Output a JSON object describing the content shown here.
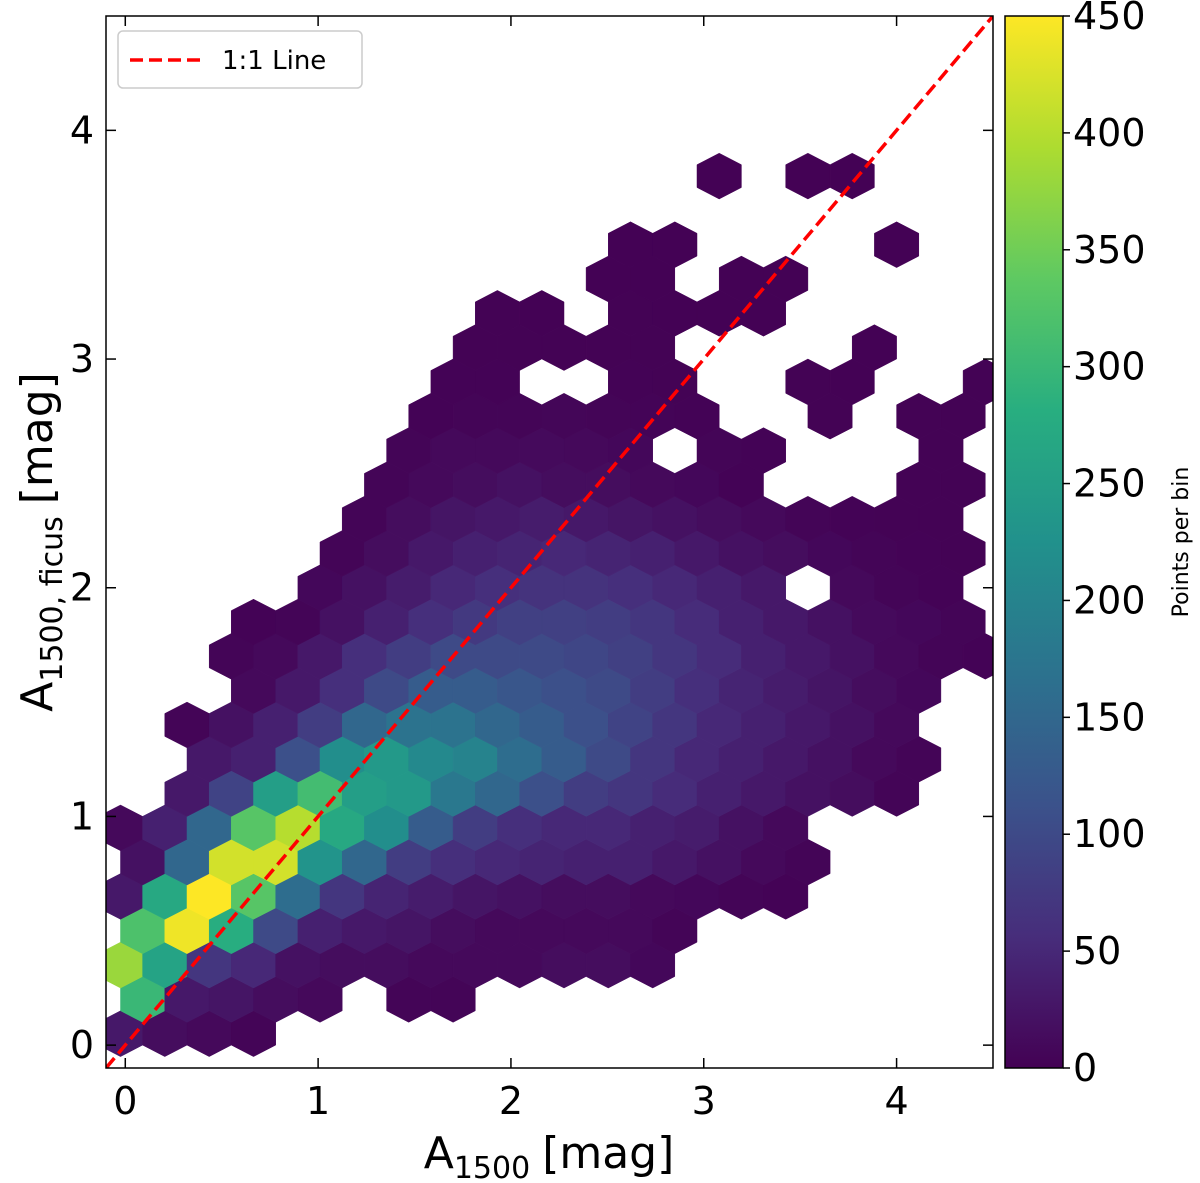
{
  "chart_data": {
    "type": "hexbin",
    "xlabel": {
      "text": "A",
      "sub": "1500",
      "unit": "[mag]"
    },
    "ylabel": {
      "text": "A",
      "sub": "1500, ficus",
      "unit": "[mag]"
    },
    "xlim": [
      -0.1,
      4.5
    ],
    "ylim": [
      -0.1,
      4.5
    ],
    "xticks": [
      0,
      1,
      2,
      3,
      4
    ],
    "yticks": [
      0,
      1,
      2,
      3,
      4
    ],
    "grid": false,
    "legend": "upper left",
    "lines": [
      {
        "name": "1:1 Line",
        "color": "#ff0000",
        "style": "dashed",
        "x": [
          -0.1,
          4.5
        ],
        "y": [
          -0.1,
          4.5
        ]
      }
    ],
    "colorbar": {
      "label": "Points per bin",
      "clim": [
        0,
        450
      ],
      "ticks": [
        0,
        50,
        100,
        150,
        200,
        250,
        300,
        350,
        400,
        450
      ],
      "colors": [
        "#440154",
        "#472d7b",
        "#3b528b",
        "#2c728e",
        "#21918c",
        "#28ae80",
        "#5ec962",
        "#addc30",
        "#fde725"
      ]
    },
    "rows": [
      {
        "y": 0.05,
        "x": [
          -0.025,
          0.205,
          0.435,
          0.665
        ],
        "counts": [
          30,
          15,
          10,
          5
        ]
      },
      {
        "y": 0.2,
        "x": [
          0.09,
          0.32,
          0.55,
          0.78,
          1.01,
          1.47,
          1.7
        ],
        "counts": [
          300,
          30,
          25,
          15,
          10,
          5,
          5
        ]
      },
      {
        "y": 0.35,
        "x": [
          -0.025,
          0.205,
          0.435,
          0.665,
          0.895,
          1.125,
          1.355,
          1.585,
          1.815,
          2.045,
          2.275,
          2.505,
          2.735
        ],
        "counts": [
          380,
          260,
          70,
          50,
          20,
          15,
          15,
          10,
          10,
          10,
          15,
          15,
          8
        ]
      },
      {
        "y": 0.5,
        "x": [
          0.09,
          0.32,
          0.55,
          0.78,
          1.01,
          1.24,
          1.47,
          1.7,
          1.93,
          2.16,
          2.39,
          2.62,
          2.85
        ],
        "counts": [
          320,
          440,
          280,
          100,
          40,
          30,
          25,
          15,
          10,
          10,
          10,
          10,
          5
        ]
      },
      {
        "y": 0.65,
        "x": [
          -0.025,
          0.205,
          0.435,
          0.665,
          0.895,
          1.125,
          1.355,
          1.585,
          1.815,
          2.045,
          2.275,
          2.505,
          2.735,
          2.965,
          3.195,
          3.425
        ],
        "counts": [
          30,
          270,
          450,
          330,
          160,
          70,
          45,
          35,
          25,
          20,
          15,
          15,
          10,
          8,
          5,
          3
        ]
      },
      {
        "y": 0.8,
        "x": [
          0.09,
          0.32,
          0.55,
          0.78,
          1.01,
          1.24,
          1.47,
          1.7,
          1.93,
          2.16,
          2.39,
          2.62,
          2.85,
          3.08,
          3.31,
          3.54
        ],
        "counts": [
          20,
          150,
          420,
          420,
          230,
          150,
          80,
          60,
          50,
          45,
          40,
          40,
          30,
          20,
          10,
          5
        ]
      },
      {
        "y": 0.95,
        "x": [
          -0.025,
          0.205,
          0.435,
          0.665,
          0.895,
          1.125,
          1.355,
          1.585,
          1.815,
          2.045,
          2.275,
          2.505,
          2.735,
          2.965,
          3.195,
          3.425
        ],
        "counts": [
          10,
          40,
          150,
          330,
          400,
          270,
          220,
          130,
          80,
          60,
          50,
          50,
          40,
          35,
          20,
          10
        ]
      },
      {
        "y": 1.1,
        "x": [
          0.32,
          0.55,
          0.78,
          1.01,
          1.24,
          1.47,
          1.7,
          1.93,
          2.16,
          2.39,
          2.62,
          2.85,
          3.08,
          3.31,
          3.54,
          3.77,
          4.0
        ],
        "counts": [
          30,
          90,
          250,
          310,
          250,
          240,
          180,
          150,
          110,
          80,
          70,
          55,
          40,
          30,
          20,
          15,
          5
        ]
      },
      {
        "y": 1.25,
        "x": [
          0.435,
          0.665,
          0.895,
          1.125,
          1.355,
          1.585,
          1.815,
          2.045,
          2.275,
          2.505,
          2.735,
          2.965,
          3.195,
          3.425,
          3.655,
          3.885,
          4.115
        ],
        "counts": [
          30,
          40,
          110,
          220,
          240,
          210,
          200,
          160,
          130,
          100,
          70,
          50,
          40,
          30,
          20,
          10,
          5
        ]
      },
      {
        "y": 1.4,
        "x": [
          0.32,
          0.55,
          0.78,
          1.01,
          1.24,
          1.47,
          1.7,
          1.93,
          2.16,
          2.39,
          2.62,
          2.85,
          3.08,
          3.31,
          3.54,
          3.77,
          4.0
        ],
        "counts": [
          5,
          20,
          40,
          80,
          150,
          170,
          170,
          150,
          130,
          110,
          90,
          70,
          50,
          40,
          30,
          20,
          10
        ]
      },
      {
        "y": 1.55,
        "x": [
          0.665,
          0.895,
          1.125,
          1.355,
          1.585,
          1.815,
          2.045,
          2.275,
          2.505,
          2.735,
          2.965,
          3.195,
          3.425,
          3.655,
          3.885,
          4.115
        ],
        "counts": [
          10,
          30,
          60,
          100,
          130,
          130,
          120,
          110,
          100,
          80,
          60,
          45,
          35,
          25,
          15,
          8
        ]
      },
      {
        "y": 1.7,
        "x": [
          0.55,
          0.78,
          1.01,
          1.24,
          1.47,
          1.7,
          1.93,
          2.16,
          2.39,
          2.62,
          2.85,
          3.08,
          3.31,
          3.54,
          3.77,
          4.0,
          4.23,
          4.46
        ],
        "counts": [
          5,
          10,
          30,
          60,
          80,
          100,
          100,
          100,
          95,
          85,
          70,
          55,
          40,
          30,
          20,
          10,
          5,
          3
        ]
      },
      {
        "y": 1.85,
        "x": [
          0.665,
          0.895,
          1.125,
          1.355,
          1.585,
          1.815,
          2.045,
          2.275,
          2.505,
          2.735,
          2.965,
          3.195,
          3.425,
          3.655,
          3.885,
          4.115,
          4.345
        ],
        "counts": [
          3,
          5,
          20,
          40,
          60,
          75,
          85,
          85,
          80,
          70,
          55,
          40,
          30,
          20,
          12,
          8,
          5
        ]
      },
      {
        "y": 2.0,
        "x": [
          1.01,
          1.24,
          1.47,
          1.7,
          1.93,
          2.16,
          2.39,
          2.62,
          2.85,
          3.08,
          3.31,
          3.77,
          4.0,
          4.23
        ],
        "counts": [
          8,
          20,
          35,
          50,
          60,
          65,
          65,
          60,
          50,
          40,
          30,
          10,
          5,
          3
        ]
      },
      {
        "y": 2.15,
        "x": [
          1.125,
          1.355,
          1.585,
          1.815,
          2.045,
          2.275,
          2.505,
          2.735,
          2.965,
          3.195,
          3.425,
          3.655,
          3.885,
          4.115,
          4.345
        ],
        "counts": [
          5,
          15,
          30,
          40,
          45,
          50,
          45,
          40,
          30,
          20,
          15,
          8,
          5,
          3,
          2
        ]
      },
      {
        "y": 2.3,
        "x": [
          1.24,
          1.47,
          1.7,
          1.93,
          2.16,
          2.39,
          2.62,
          2.85,
          3.08,
          3.31,
          3.54,
          3.77,
          4.0,
          4.23
        ],
        "counts": [
          5,
          15,
          25,
          30,
          35,
          30,
          25,
          20,
          15,
          10,
          5,
          3,
          2,
          2
        ]
      },
      {
        "y": 2.45,
        "x": [
          1.355,
          1.585,
          1.815,
          2.045,
          2.275,
          2.505,
          2.735,
          2.965,
          3.195,
          4.115,
          4.345
        ],
        "counts": [
          5,
          10,
          15,
          20,
          15,
          15,
          10,
          8,
          3,
          2,
          2
        ]
      },
      {
        "y": 2.6,
        "x": [
          1.47,
          1.7,
          1.93,
          2.16,
          2.39,
          2.62,
          3.08,
          3.31,
          4.23
        ],
        "counts": [
          5,
          10,
          10,
          12,
          10,
          8,
          5,
          3,
          2
        ]
      },
      {
        "y": 2.75,
        "x": [
          1.585,
          1.815,
          2.045,
          2.275,
          2.505,
          2.735,
          2.965,
          3.655,
          4.115,
          4.345
        ],
        "counts": [
          3,
          5,
          5,
          6,
          5,
          4,
          3,
          2,
          2,
          2
        ]
      },
      {
        "y": 2.9,
        "x": [
          1.7,
          1.93,
          2.62,
          2.85,
          3.54,
          3.77,
          4.46
        ],
        "counts": [
          3,
          3,
          3,
          2,
          2,
          1,
          2
        ]
      },
      {
        "y": 3.05,
        "x": [
          1.815,
          2.045,
          2.275,
          2.505,
          2.735,
          3.885
        ],
        "counts": [
          2,
          2,
          2,
          2,
          2,
          1
        ]
      },
      {
        "y": 3.2,
        "x": [
          1.93,
          2.16,
          2.62,
          2.85,
          3.08,
          3.31
        ],
        "counts": [
          2,
          1,
          2,
          1,
          1,
          1
        ]
      },
      {
        "y": 3.35,
        "x": [
          2.505,
          2.735,
          3.195,
          3.425
        ],
        "counts": [
          1,
          1,
          1,
          1
        ]
      },
      {
        "y": 3.5,
        "x": [
          2.62,
          2.85,
          4.0
        ],
        "counts": [
          1,
          1,
          1
        ]
      },
      {
        "y": 3.8,
        "x": [
          3.08,
          3.54,
          3.77
        ],
        "counts": [
          1,
          1,
          1
        ]
      }
    ]
  }
}
